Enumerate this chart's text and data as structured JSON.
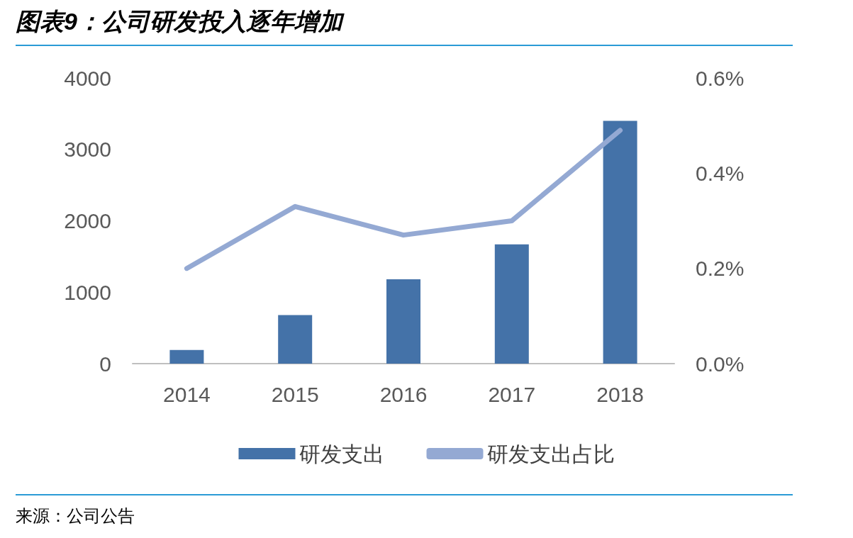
{
  "chart_data": {
    "type": "bar",
    "title": "图表9：公司研发投入逐年增加",
    "categories": [
      "2014",
      "2015",
      "2016",
      "2017",
      "2018"
    ],
    "series": [
      {
        "name": "研发支出",
        "color": "#4472a8",
        "values": [
          190,
          680,
          1180,
          1670,
          3400
        ]
      },
      {
        "name": "研发支出占比",
        "type": "line",
        "axis": "y2",
        "color": "#94a9d3",
        "marker": "none",
        "values": [
          0.2,
          0.33,
          0.27,
          0.3,
          0.49
        ]
      }
    ],
    "ylim": [
      0,
      4000
    ],
    "yticks": [
      0,
      1000,
      2000,
      3000,
      4000
    ],
    "y2lim": [
      0,
      0.6
    ],
    "y2ticks": [
      {
        "value": 0,
        "label": "0.0%"
      },
      {
        "value": 0.2,
        "label": "0.2%"
      },
      {
        "value": 0.4,
        "label": "0.4%"
      },
      {
        "value": 0.6,
        "label": "0.6%"
      }
    ],
    "grid": false,
    "legend": "bottom",
    "annotations": [
      "来源：公司公告"
    ]
  }
}
